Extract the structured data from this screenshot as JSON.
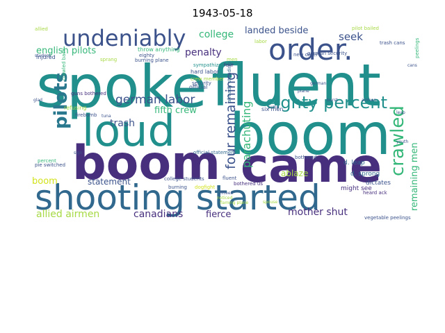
{
  "title": "1943-05-18",
  "palette": {
    "purple": "#472f7d",
    "indigo": "#3b528b",
    "blue": "#31688e",
    "teal": "#21908d",
    "green": "#35b779",
    "lime": "#a6d943",
    "yellow": "#d2e21b",
    "dark": "#440154"
  },
  "words": [
    {
      "text": "spoke",
      "color": "#21908d"
    },
    {
      "text": "fluent",
      "color": "#21908d"
    },
    {
      "text": "loud",
      "color": "#21908d"
    },
    {
      "text": "boom",
      "color": "#21908d"
    },
    {
      "text": "boom",
      "color": "#472f7d"
    },
    {
      "text": "came",
      "color": "#472f7d"
    },
    {
      "text": "shooting started",
      "color": "#31688e"
    },
    {
      "text": "order.",
      "color": "#3b528b"
    },
    {
      "text": "undeniably",
      "color": "#3b528b"
    },
    {
      "text": "eighty percent",
      "color": "#21908d"
    },
    {
      "text": "pilots",
      "color": "#2a788e"
    },
    {
      "text": "crawled",
      "color": "#35b779"
    },
    {
      "text": "german labor",
      "color": "#3b528b"
    },
    {
      "text": "four remaining",
      "color": "#3b528b"
    },
    {
      "text": "parachuting",
      "color": "#35b779"
    },
    {
      "text": "english pilots",
      "color": "#35b779"
    },
    {
      "text": "college",
      "color": "#35b779"
    },
    {
      "text": "landed beside",
      "color": "#3b528b"
    },
    {
      "text": "seek",
      "color": "#3b528b"
    },
    {
      "text": "penalty",
      "color": "#472f7d"
    },
    {
      "text": "trash",
      "color": "#3b528b"
    },
    {
      "text": "fifth crew",
      "color": "#35b779"
    },
    {
      "text": "remaining men",
      "color": "#35b779"
    },
    {
      "text": "allied airmen",
      "color": "#a6d943"
    },
    {
      "text": "canadians",
      "color": "#472f7d"
    },
    {
      "text": "fierce",
      "color": "#472f7d"
    },
    {
      "text": "mother shut",
      "color": "#472f7d"
    },
    {
      "text": "ablaze",
      "color": "#a6d943"
    },
    {
      "text": "statement",
      "color": "#3b528b"
    },
    {
      "text": "boom",
      "color": "#d2e21b"
    },
    {
      "text": "d. leap",
      "color": "#31688e"
    },
    {
      "text": "d. sprong",
      "color": "#31688e"
    },
    {
      "text": "might see",
      "color": "#472f7d"
    },
    {
      "text": "dictates",
      "color": "#3b528b"
    },
    {
      "text": "heard ack",
      "color": "#472f7d"
    },
    {
      "text": "german security",
      "color": "#3b528b"
    },
    {
      "text": "new order",
      "color": "#3b528b"
    },
    {
      "text": "six men",
      "color": "#3b528b"
    },
    {
      "text": "hard labor",
      "color": "#3b528b"
    },
    {
      "text": "crew member",
      "color": "#a6d943"
    },
    {
      "text": "official",
      "color": "#3b528b"
    },
    {
      "text": "college students",
      "color": "#3b528b"
    },
    {
      "text": "bothered us",
      "color": "#472f7d"
    },
    {
      "text": "fluent",
      "color": "#3b528b"
    },
    {
      "text": "dogfight",
      "color": "#d2e21b"
    },
    {
      "text": "already standing",
      "color": "#31688e"
    },
    {
      "text": "sympathize",
      "color": "#21908d"
    },
    {
      "text": "security",
      "color": "#3b528b"
    },
    {
      "text": "refusing",
      "color": "#a6d943"
    },
    {
      "text": "guns bothered",
      "color": "#472f7d"
    },
    {
      "text": "firebomb",
      "color": "#3b528b"
    },
    {
      "text": "pie switched",
      "color": "#3b528b"
    },
    {
      "text": "percent",
      "color": "#35b779"
    },
    {
      "text": "injured",
      "color": "#3b528b"
    },
    {
      "text": "allied",
      "color": "#a6d943"
    },
    {
      "text": "pilot bailed",
      "color": "#a6d943"
    },
    {
      "text": "trash cans",
      "color": "#3b528b"
    },
    {
      "text": "peelings",
      "color": "#35b779"
    },
    {
      "text": "vegetable peelings",
      "color": "#3b528b"
    },
    {
      "text": "official statement",
      "color": "#31688e"
    },
    {
      "text": "burning plane",
      "color": "#3b528b"
    },
    {
      "text": "throw anything",
      "color": "#35b779"
    },
    {
      "text": "eighty",
      "color": "#3b528b"
    },
    {
      "text": "sprang",
      "color": "#a6d943"
    },
    {
      "text": "labor",
      "color": "#a6d943"
    },
    {
      "text": "four",
      "color": "#472f7d"
    },
    {
      "text": "men",
      "color": "#a6d943"
    },
    {
      "text": "bothered",
      "color": "#3b528b"
    },
    {
      "text": "burning",
      "color": "#3b528b"
    },
    {
      "text": "crawled back",
      "color": "#35b779"
    },
    {
      "text": "student",
      "color": "#3b528b"
    },
    {
      "text": "jump",
      "color": "#3b528b"
    },
    {
      "text": "leap",
      "color": "#3b528b"
    },
    {
      "text": "burst",
      "color": "#3b528b"
    },
    {
      "text": "sign",
      "color": "#3b528b"
    },
    {
      "text": "flaming plane",
      "color": "#a6d943"
    },
    {
      "text": "fifteen",
      "color": "#3b528b"
    },
    {
      "text": "noticed",
      "color": "#a6d943"
    },
    {
      "text": "german",
      "color": "#3b528b"
    },
    {
      "text": "airmen",
      "color": "#3b528b"
    },
    {
      "text": "plane",
      "color": "#3b528b"
    },
    {
      "text": "cans",
      "color": "#3b528b"
    },
    {
      "text": "glad",
      "color": "#3b528b"
    },
    {
      "text": "youth",
      "color": "#3b528b"
    },
    {
      "text": "tuna",
      "color": "#3b528b"
    },
    {
      "text": "spouse",
      "color": "#a6d943"
    }
  ]
}
